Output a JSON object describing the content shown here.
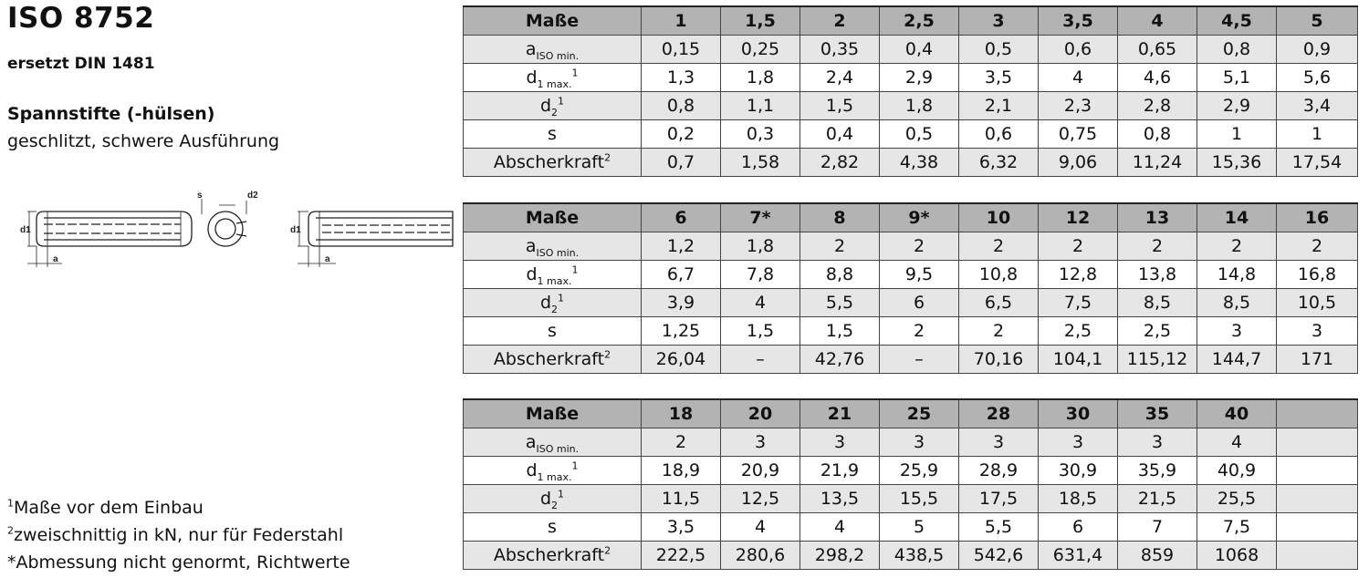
{
  "header": {
    "title": "ISO 8752",
    "subtitle": "ersetzt DIN 1481",
    "product_title": "Spannstifte (-hülsen)",
    "product_desc": "geschlitzt, schwere Ausführung"
  },
  "drawing_labels": {
    "d1": "d1",
    "s": "s",
    "d2": "d2",
    "a": "a"
  },
  "row_labels": {
    "header": "Maße",
    "a_main": "a",
    "a_sub": "ISO min.",
    "d1_main": "d",
    "d1_sub": "1 max.",
    "d1_sup": "1",
    "d2_main": "d",
    "d2_sub": "2",
    "d2_sup": "1",
    "s": "s",
    "force_main": "Abscherkraft",
    "force_sup": "2"
  },
  "tables": [
    {
      "sizes": [
        "1",
        "1,5",
        "2",
        "2,5",
        "3",
        "3,5",
        "4",
        "4,5",
        "5"
      ],
      "a": [
        "0,15",
        "0,25",
        "0,35",
        "0,4",
        "0,5",
        "0,6",
        "0,65",
        "0,8",
        "0,9"
      ],
      "d1": [
        "1,3",
        "1,8",
        "2,4",
        "2,9",
        "3,5",
        "4",
        "4,6",
        "5,1",
        "5,6"
      ],
      "d2": [
        "0,8",
        "1,1",
        "1,5",
        "1,8",
        "2,1",
        "2,3",
        "2,8",
        "2,9",
        "3,4"
      ],
      "s": [
        "0,2",
        "0,3",
        "0,4",
        "0,5",
        "0,6",
        "0,75",
        "0,8",
        "1",
        "1"
      ],
      "force": [
        "0,7",
        "1,58",
        "2,82",
        "4,38",
        "6,32",
        "9,06",
        "11,24",
        "15,36",
        "17,54"
      ]
    },
    {
      "sizes": [
        "6",
        "7*",
        "8",
        "9*",
        "10",
        "12",
        "13",
        "14",
        "16"
      ],
      "a": [
        "1,2",
        "1,8",
        "2",
        "2",
        "2",
        "2",
        "2",
        "2",
        "2"
      ],
      "d1": [
        "6,7",
        "7,8",
        "8,8",
        "9,5",
        "10,8",
        "12,8",
        "13,8",
        "14,8",
        "16,8"
      ],
      "d2": [
        "3,9",
        "4",
        "5,5",
        "6",
        "6,5",
        "7,5",
        "8,5",
        "8,5",
        "10,5"
      ],
      "s": [
        "1,25",
        "1,5",
        "1,5",
        "2",
        "2",
        "2,5",
        "2,5",
        "3",
        "3"
      ],
      "force": [
        "26,04",
        "–",
        "42,76",
        "–",
        "70,16",
        "104,1",
        "115,12",
        "144,7",
        "171"
      ]
    },
    {
      "sizes": [
        "18",
        "20",
        "21",
        "25",
        "28",
        "30",
        "35",
        "40",
        ""
      ],
      "a": [
        "2",
        "3",
        "3",
        "3",
        "3",
        "3",
        "3",
        "4",
        ""
      ],
      "d1": [
        "18,9",
        "20,9",
        "21,9",
        "25,9",
        "28,9",
        "30,9",
        "35,9",
        "40,9",
        ""
      ],
      "d2": [
        "11,5",
        "12,5",
        "13,5",
        "15,5",
        "17,5",
        "18,5",
        "21,5",
        "25,5",
        ""
      ],
      "s": [
        "3,5",
        "4",
        "4",
        "5",
        "5,5",
        "6",
        "7",
        "7,5",
        ""
      ],
      "force": [
        "222,5",
        "280,6",
        "298,2",
        "438,5",
        "542,6",
        "631,4",
        "859",
        "1068",
        ""
      ]
    }
  ],
  "footnotes": {
    "n1_mark": "1",
    "n1_text": "Maße vor dem Einbau",
    "n2_mark": "2",
    "n2_text": "zweischnittig in kN, nur für Federstahl",
    "n3_text": "*Abmessung nicht genormt, Richtwerte"
  }
}
